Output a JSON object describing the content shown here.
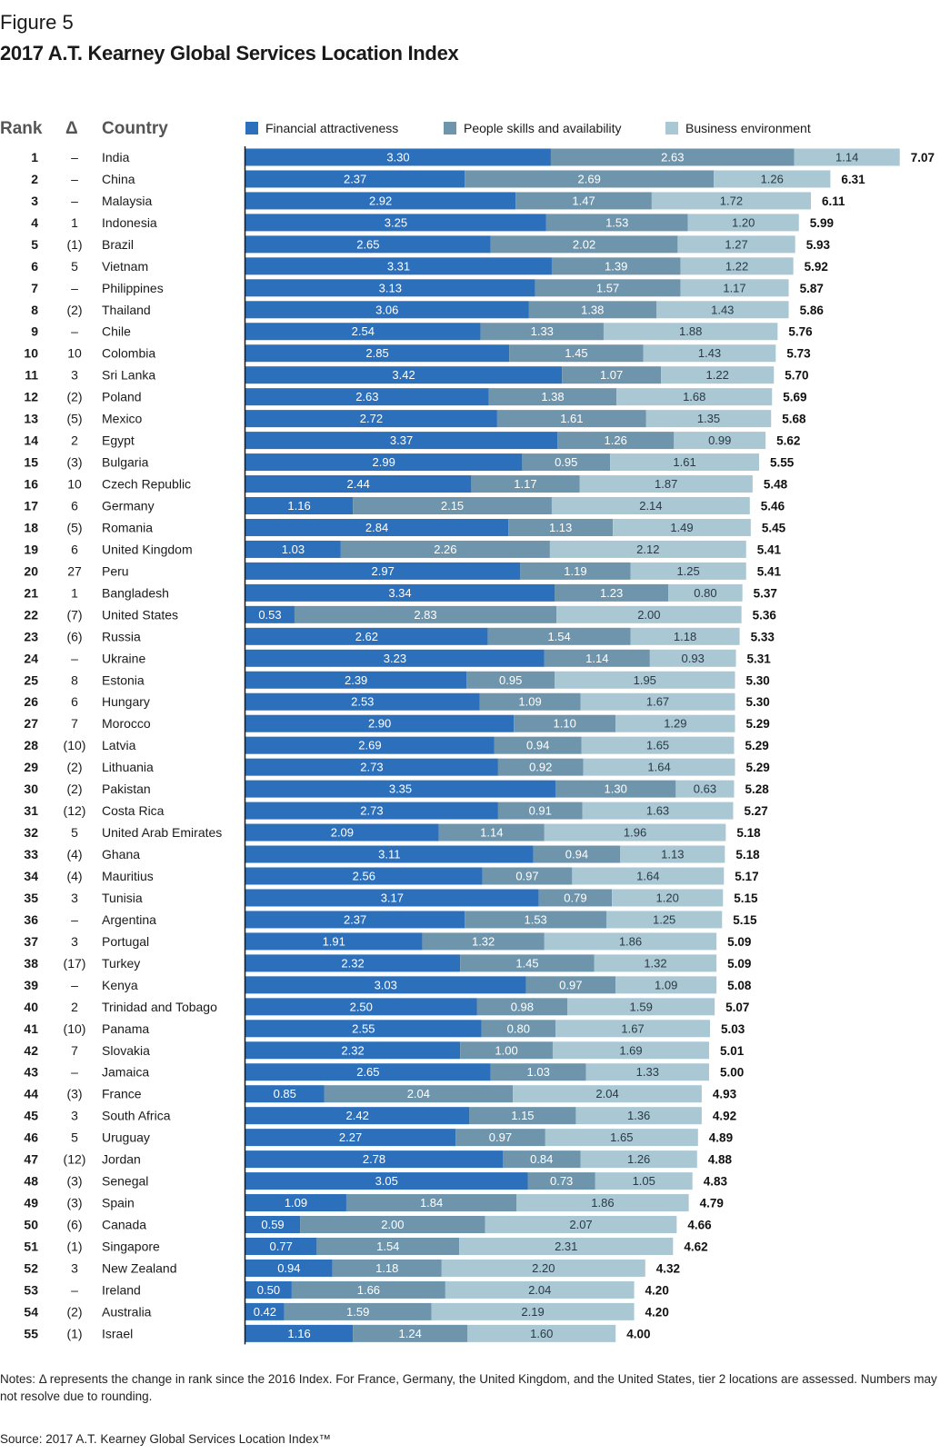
{
  "figure_label": "Figure 5",
  "headers": {
    "rank": "Rank",
    "delta": "Δ",
    "country": "Country"
  },
  "notes": "Notes: Δ represents the change in rank since the 2016 Index. For France, Germany, the United Kingdom, and the United States, tier 2 locations are assessed. Numbers may not resolve due to rounding.",
  "source": "Source: 2017 A.T. Kearney Global Services Location Index™",
  "colors": {
    "financial": "#2c6fbb",
    "people": "#6f95ad",
    "business": "#a9c8d4"
  },
  "chart_data": {
    "type": "bar",
    "orientation": "horizontal",
    "stacked": true,
    "title": "2017 A.T. Kearney Global Services Location Index",
    "legend_position": "top",
    "series": [
      {
        "name": "Financial attractiveness",
        "values": [
          3.3,
          2.37,
          2.92,
          3.25,
          2.65,
          3.31,
          3.13,
          3.06,
          2.54,
          2.85,
          3.42,
          2.63,
          2.72,
          3.37,
          2.99,
          2.44,
          1.16,
          2.84,
          1.03,
          2.97,
          3.34,
          0.53,
          2.62,
          3.23,
          2.39,
          2.53,
          2.9,
          2.69,
          2.73,
          3.35,
          2.73,
          2.09,
          3.11,
          2.56,
          3.17,
          2.37,
          1.91,
          2.32,
          3.03,
          2.5,
          2.55,
          2.32,
          2.65,
          0.85,
          2.42,
          2.27,
          2.78,
          3.05,
          1.09,
          0.59,
          0.77,
          0.94,
          0.5,
          0.42,
          1.16
        ]
      },
      {
        "name": "People skills and availability",
        "values": [
          2.63,
          2.69,
          1.47,
          1.53,
          2.02,
          1.39,
          1.57,
          1.38,
          1.33,
          1.45,
          1.07,
          1.38,
          1.61,
          1.26,
          0.95,
          1.17,
          2.15,
          1.13,
          2.26,
          1.19,
          1.23,
          2.83,
          1.54,
          1.14,
          0.95,
          1.09,
          1.1,
          0.94,
          0.92,
          1.3,
          0.91,
          1.14,
          0.94,
          0.97,
          0.79,
          1.53,
          1.32,
          1.45,
          0.97,
          0.98,
          0.8,
          1.0,
          1.03,
          2.04,
          1.15,
          0.97,
          0.84,
          0.73,
          1.84,
          2.0,
          1.54,
          1.18,
          1.66,
          1.59,
          1.24
        ]
      },
      {
        "name": "Business environment",
        "values": [
          1.14,
          1.26,
          1.72,
          1.2,
          1.27,
          1.22,
          1.17,
          1.43,
          1.88,
          1.43,
          1.22,
          1.68,
          1.35,
          0.99,
          1.61,
          1.87,
          2.14,
          1.49,
          2.12,
          1.25,
          0.8,
          2.0,
          1.18,
          0.93,
          1.95,
          1.67,
          1.29,
          1.65,
          1.64,
          0.63,
          1.63,
          1.96,
          1.13,
          1.64,
          1.2,
          1.25,
          1.86,
          1.32,
          1.09,
          1.59,
          1.67,
          1.69,
          1.33,
          2.04,
          1.36,
          1.65,
          1.26,
          1.05,
          1.86,
          2.07,
          2.31,
          2.2,
          2.04,
          2.19,
          1.6
        ]
      }
    ],
    "totals": [
      7.07,
      6.31,
      6.11,
      5.99,
      5.93,
      5.92,
      5.87,
      5.86,
      5.76,
      5.73,
      5.7,
      5.69,
      5.68,
      5.62,
      5.55,
      5.48,
      5.46,
      5.45,
      5.41,
      5.41,
      5.37,
      5.36,
      5.33,
      5.31,
      5.3,
      5.3,
      5.29,
      5.29,
      5.29,
      5.28,
      5.27,
      5.18,
      5.18,
      5.17,
      5.15,
      5.15,
      5.09,
      5.09,
      5.08,
      5.07,
      5.03,
      5.01,
      5.0,
      4.93,
      4.92,
      4.89,
      4.88,
      4.83,
      4.79,
      4.66,
      4.62,
      4.32,
      4.2,
      4.2,
      4.0
    ],
    "ranks": [
      "1",
      "2",
      "3",
      "4",
      "5",
      "6",
      "7",
      "8",
      "9",
      "10",
      "11",
      "12",
      "13",
      "14",
      "15",
      "16",
      "17",
      "18",
      "19",
      "20",
      "21",
      "22",
      "23",
      "24",
      "25",
      "26",
      "27",
      "28",
      "29",
      "30",
      "31",
      "32",
      "33",
      "34",
      "35",
      "36",
      "37",
      "38",
      "39",
      "40",
      "41",
      "42",
      "43",
      "44",
      "45",
      "46",
      "47",
      "48",
      "49",
      "50",
      "51",
      "52",
      "53",
      "54",
      "55"
    ],
    "deltas": [
      "–",
      "–",
      "–",
      "1",
      "(1)",
      "5",
      "–",
      "(2)",
      "–",
      "10",
      "3",
      "(2)",
      "(5)",
      "2",
      "(3)",
      "10",
      "6",
      "(5)",
      "6",
      "27",
      "1",
      "(7)",
      "(6)",
      "–",
      "8",
      "6",
      "7",
      "(10)",
      "(2)",
      "(2)",
      "(12)",
      "5",
      "(4)",
      "(4)",
      "3",
      "–",
      "3",
      "(17)",
      "–",
      "2",
      "(10)",
      "7",
      "–",
      "(3)",
      "3",
      "5",
      "(12)",
      "(3)",
      "(3)",
      "(6)",
      "(1)",
      "3",
      "–",
      "(2)",
      "(1)"
    ],
    "categories": [
      "India",
      "China",
      "Malaysia",
      "Indonesia",
      "Brazil",
      "Vietnam",
      "Philippines",
      "Thailand",
      "Chile",
      "Colombia",
      "Sri Lanka",
      "Poland",
      "Mexico",
      "Egypt",
      "Bulgaria",
      "Czech Republic",
      "Germany",
      "Romania",
      "United Kingdom",
      "Peru",
      "Bangladesh",
      "United States",
      "Russia",
      "Ukraine",
      "Estonia",
      "Hungary",
      "Morocco",
      "Latvia",
      "Lithuania",
      "Pakistan",
      "Costa Rica",
      "United Arab Emirates",
      "Ghana",
      "Mauritius",
      "Tunisia",
      "Argentina",
      "Portugal",
      "Turkey",
      "Kenya",
      "Trinidad and Tobago",
      "Panama",
      "Slovakia",
      "Jamaica",
      "France",
      "South Africa",
      "Uruguay",
      "Jordan",
      "Senegal",
      "Spain",
      "Canada",
      "Singapore",
      "New Zealand",
      "Ireland",
      "Australia",
      "Israel"
    ],
    "xlim": [
      0,
      7.07
    ]
  }
}
